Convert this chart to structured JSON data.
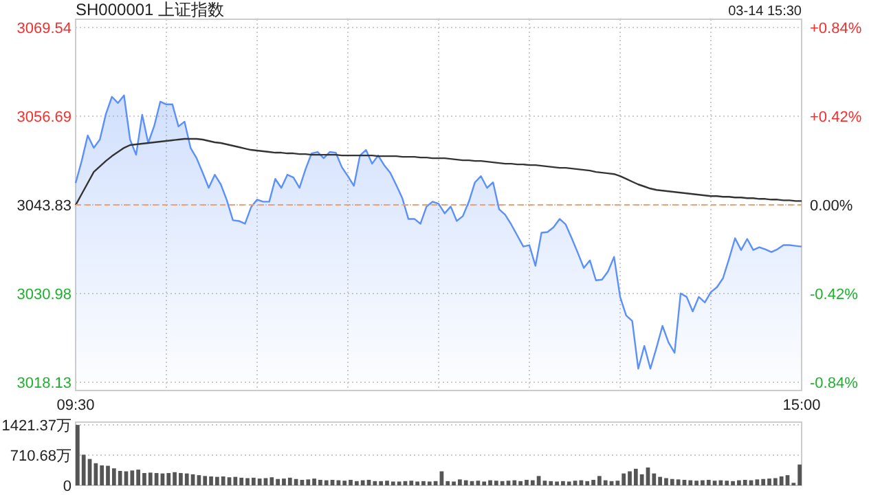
{
  "chart_data": [
    {
      "type": "area",
      "title": "SH000001 上证指数",
      "annotations": [
        "03-14 15:30"
      ],
      "categories": [
        "09:30",
        null,
        null,
        null,
        null,
        null,
        null,
        null,
        null,
        null,
        null,
        null,
        null,
        null,
        null,
        null,
        null,
        null,
        null,
        null,
        null,
        null,
        null,
        null,
        null,
        null,
        null,
        null,
        null,
        null,
        null,
        null,
        null,
        null,
        null,
        null,
        null,
        null,
        null,
        null,
        null,
        null,
        null,
        null,
        null,
        null,
        null,
        null,
        null,
        null,
        null,
        null,
        null,
        null,
        null,
        null,
        null,
        null,
        null,
        null,
        null,
        null,
        null,
        null,
        null,
        null,
        null,
        null,
        null,
        null,
        null,
        null,
        null,
        null,
        null,
        null,
        null,
        null,
        null,
        null,
        null,
        null,
        null,
        null,
        null,
        null,
        null,
        null,
        null,
        null,
        null,
        null,
        null,
        null,
        null,
        null,
        null,
        null,
        null,
        null,
        null,
        null,
        null,
        null,
        null,
        null,
        null,
        null,
        null,
        null,
        null,
        null,
        null,
        null,
        null,
        null,
        null,
        null,
        null,
        null,
        "15:00"
      ],
      "ylim": [
        3018.13,
        3069.54
      ],
      "yticks": [
        3018.13,
        3030.98,
        3043.83,
        3056.69,
        3069.54
      ],
      "y2lim": [
        -0.84,
        0.84
      ],
      "y2ticks": [
        {
          "value": -0.84,
          "label": "-0.84%"
        },
        {
          "value": -0.42,
          "label": "-0.42%"
        },
        {
          "value": 0,
          "label": "0.00%"
        },
        {
          "value": 0.42,
          "label": "+0.42%"
        },
        {
          "value": 0.84,
          "label": "+0.84%"
        }
      ],
      "grid": true,
      "ref_lines": [
        {
          "axis": "y",
          "value": 3043.83,
          "color": "#f0a070",
          "line_style": "dashed"
        }
      ],
      "series": [
        {
          "type": "area",
          "color": "#5b8ff9",
          "values": [
            3047.0,
            3050.2,
            3053.9,
            3052.1,
            3053.3,
            3057.0,
            3059.5,
            3058.6,
            3059.7,
            3053.3,
            3051.1,
            3056.9,
            3052.8,
            3055.3,
            3058.8,
            3058.4,
            3058.4,
            3055.2,
            3055.9,
            3052.1,
            3050.6,
            3048.5,
            3046.3,
            3048.2,
            3046.8,
            3044.5,
            3041.6,
            3041.5,
            3041.1,
            3043.5,
            3044.6,
            3044.3,
            3044.3,
            3047.6,
            3046.3,
            3048.2,
            3047.8,
            3046.3,
            3049.0,
            3051.3,
            3051.5,
            3050.6,
            3051.5,
            3051.4,
            3049.3,
            3048.0,
            3046.6,
            3051.0,
            3051.8,
            3049.8,
            3051.0,
            3049.6,
            3048.5,
            3046.7,
            3044.8,
            3041.8,
            3041.8,
            3041.1,
            3043.6,
            3044.3,
            3044.0,
            3042.6,
            3043.6,
            3041.5,
            3042.2,
            3044.3,
            3047.1,
            3048.0,
            3046.3,
            3047.1,
            3043.2,
            3042.4,
            3041.0,
            3039.4,
            3037.8,
            3038.0,
            3035.0,
            3039.8,
            3039.9,
            3040.6,
            3041.8,
            3041.0,
            3039.0,
            3036.9,
            3034.7,
            3035.8,
            3032.9,
            3033.0,
            3034.2,
            3036.3,
            3030.5,
            3027.8,
            3027.0,
            3020.1,
            3023.4,
            3020.1,
            3023.1,
            3026.3,
            3023.9,
            3022.4,
            3031.0,
            3030.5,
            3028.4,
            3030.5,
            3029.7,
            3031.2,
            3031.9,
            3033.2,
            3036.0,
            3039.0,
            3037.3,
            3038.9,
            3037.3,
            3037.7,
            3037.4,
            3037.0,
            3037.4,
            3038.0,
            3038.0,
            3037.9,
            3037.8
          ]
        },
        {
          "type": "line",
          "color": "#333333",
          "values": [
            3043.8,
            3045.4,
            3047.0,
            3048.6,
            3049.4,
            3050.2,
            3050.9,
            3051.5,
            3052.1,
            3052.5,
            3052.6,
            3052.7,
            3052.8,
            3052.9,
            3053.0,
            3053.1,
            3053.2,
            3053.3,
            3053.4,
            3053.4,
            3053.4,
            3053.3,
            3053.1,
            3052.9,
            3052.8,
            3052.6,
            3052.4,
            3052.2,
            3052.0,
            3051.8,
            3051.7,
            3051.6,
            3051.5,
            3051.4,
            3051.4,
            3051.3,
            3051.3,
            3051.2,
            3051.2,
            3051.1,
            3051.1,
            3051.1,
            3051.1,
            3051.1,
            3051.0,
            3051.0,
            3051.0,
            3051.0,
            3051.0,
            3051.0,
            3050.9,
            3050.9,
            3050.9,
            3050.9,
            3050.8,
            3050.8,
            3050.8,
            3050.7,
            3050.7,
            3050.6,
            3050.6,
            3050.6,
            3050.5,
            3050.4,
            3050.3,
            3050.3,
            3050.2,
            3050.2,
            3050.1,
            3050.0,
            3049.9,
            3049.8,
            3049.8,
            3049.7,
            3049.7,
            3049.6,
            3049.6,
            3049.5,
            3049.4,
            3049.3,
            3049.2,
            3049.2,
            3049.1,
            3049.0,
            3048.9,
            3048.8,
            3048.6,
            3048.5,
            3048.4,
            3048.3,
            3048.0,
            3047.6,
            3047.2,
            3046.8,
            3046.5,
            3046.2,
            3046.0,
            3045.9,
            3045.8,
            3045.7,
            3045.6,
            3045.5,
            3045.4,
            3045.3,
            3045.2,
            3045.1,
            3045.1,
            3045.0,
            3045.0,
            3044.9,
            3044.9,
            3044.8,
            3044.8,
            3044.7,
            3044.7,
            3044.6,
            3044.6,
            3044.5,
            3044.5,
            3044.4,
            3044.4
          ]
        }
      ]
    },
    {
      "type": "bar",
      "categories": [
        null,
        null,
        null,
        null,
        null,
        null,
        null,
        null,
        null,
        null,
        null,
        null,
        null,
        null,
        null,
        null,
        null,
        null,
        null,
        null,
        null,
        null,
        null,
        null,
        null,
        null,
        null,
        null,
        null,
        null,
        null,
        null,
        null,
        null,
        null,
        null,
        null,
        null,
        null,
        null,
        null,
        null,
        null,
        null,
        null,
        null,
        null,
        null,
        null,
        null,
        null,
        null,
        null,
        null,
        null,
        null,
        null,
        null,
        null,
        null,
        null,
        null,
        null,
        null,
        null,
        null,
        null,
        null,
        null,
        null,
        null,
        null,
        null,
        null,
        null,
        null,
        null,
        null,
        null,
        null,
        null,
        null,
        null,
        null,
        null,
        null,
        null,
        null,
        null,
        null,
        null,
        null,
        null,
        null,
        null,
        null,
        null,
        null,
        null,
        null,
        null,
        null,
        null,
        null,
        null,
        null,
        null,
        null,
        null,
        null,
        null,
        null,
        null,
        null,
        null,
        null,
        null,
        null,
        null,
        null
      ],
      "color": "#555555",
      "ylim": [
        0,
        1421.37
      ],
      "yticks": [
        0,
        {
          "value": 710.68,
          "label": "710.68万"
        },
        {
          "value": 1421.37,
          "label": "1421.37万"
        }
      ],
      "grid": "y",
      "values": [
        1420,
        720,
        620,
        520,
        470,
        460,
        400,
        340,
        330,
        350,
        370,
        290,
        300,
        290,
        280,
        290,
        310,
        290,
        280,
        260,
        240,
        220,
        210,
        200,
        210,
        190,
        200,
        180,
        170,
        180,
        160,
        170,
        190,
        150,
        160,
        180,
        150,
        130,
        140,
        160,
        130,
        120,
        130,
        120,
        110,
        130,
        100,
        120,
        130,
        100,
        100,
        110,
        90,
        90,
        100,
        110,
        90,
        100,
        90,
        100,
        330,
        100,
        90,
        140,
        120,
        100,
        110,
        90,
        120,
        110,
        100,
        110,
        120,
        100,
        130,
        120,
        220,
        110,
        100,
        90,
        100,
        90,
        110,
        120,
        100,
        130,
        220,
        120,
        100,
        110,
        280,
        330,
        390,
        260,
        420,
        280,
        200,
        170,
        150,
        140,
        130,
        120,
        110,
        120,
        130,
        110,
        120,
        110,
        100,
        120,
        130,
        120,
        140,
        150,
        160,
        170,
        210,
        240,
        60,
        490
      ]
    }
  ]
}
